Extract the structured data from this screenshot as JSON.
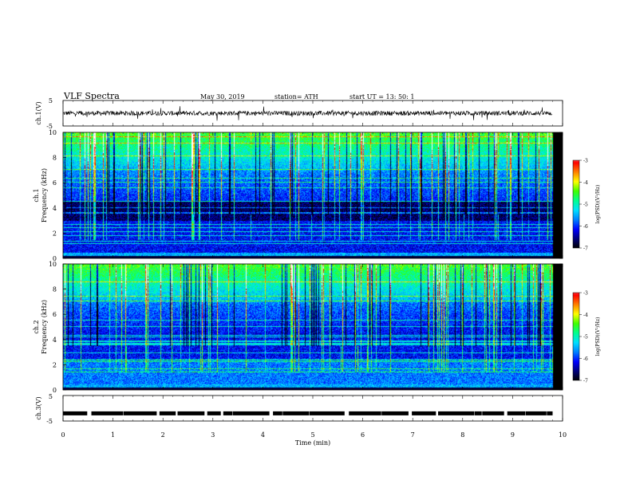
{
  "header": {
    "title": "VLF  Spectra",
    "date": "May 30, 2019",
    "station": "station= ATH",
    "start": "start  UT  =   13: 50: 1"
  },
  "chart_data": [
    {
      "type": "line",
      "panel": "ch1-waveform",
      "ylabel": "ch.1(V)",
      "ylim": [
        -5,
        5
      ],
      "yticks": [
        "5",
        "-5"
      ],
      "note": "broadband waveform amplitude near 0 V with ±1 V noise and sporadic spikes"
    },
    {
      "type": "heatmap",
      "panel": "ch1-spectrogram",
      "ylabel": "ch.1 Frequency (kHz)",
      "ylim": [
        0,
        10
      ],
      "yticks": [
        "0",
        "2",
        "4",
        "6",
        "8",
        "10"
      ],
      "colorbar": {
        "label": "log(PSD)(V²/Hz)",
        "range": [
          -7,
          -3
        ],
        "ticks": [
          "-3",
          "-4",
          "-5",
          "-6",
          "-7"
        ]
      }
    },
    {
      "type": "heatmap",
      "panel": "ch2-spectrogram",
      "ylabel": "ch.2 Frequency (kHz)",
      "ylim": [
        0,
        10
      ],
      "yticks": [
        "0",
        "2",
        "4",
        "6",
        "8",
        "10"
      ],
      "colorbar": {
        "label": "log(PSD)(V²/Hz)",
        "range": [
          -7,
          -3
        ],
        "ticks": [
          "-3",
          "-4",
          "-5",
          "-6",
          "-7"
        ]
      }
    },
    {
      "type": "line",
      "panel": "ch3-waveform",
      "ylabel": "ch.3(V)",
      "ylim": [
        -5,
        5
      ],
      "yticks": [
        "5",
        "-5"
      ],
      "note": "pulse train at about -2 V with short gaps"
    }
  ],
  "xaxis": {
    "label": "Time  (min)",
    "range": [
      0,
      10
    ],
    "ticks": [
      "0",
      "1",
      "2",
      "3",
      "4",
      "5",
      "6",
      "7",
      "8",
      "9",
      "10"
    ],
    "data_end": 9.8
  },
  "colors": {
    "colormap": [
      "#000000",
      "#00007a",
      "#0000ff",
      "#0080ff",
      "#00e0ff",
      "#00ff90",
      "#40ff00",
      "#ffff00",
      "#ff8000",
      "#ff0000",
      "#ffffff"
    ]
  }
}
